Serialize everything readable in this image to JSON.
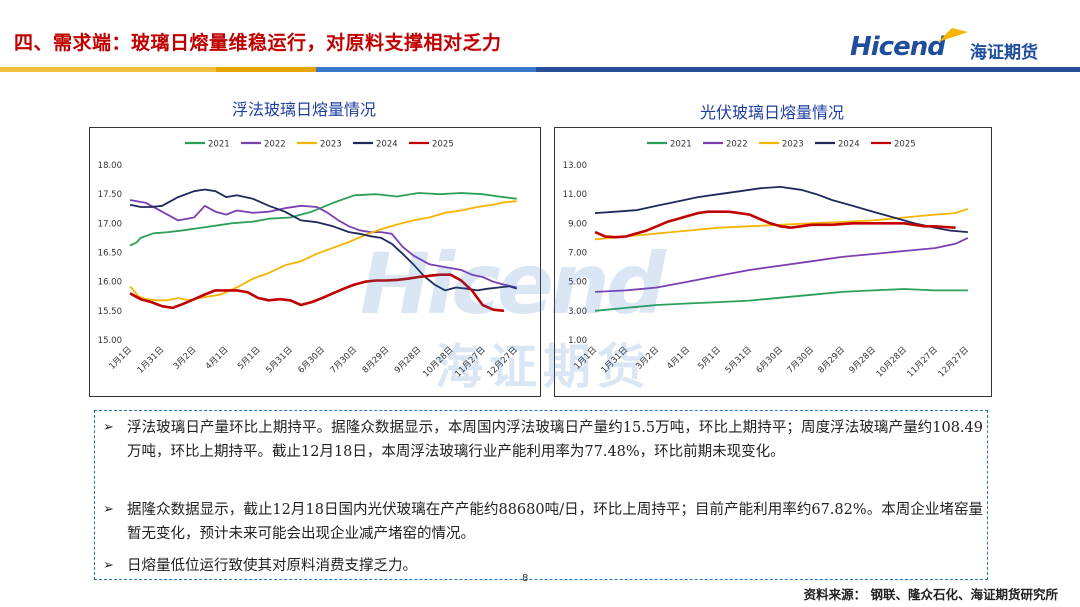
{
  "header": {
    "title": "四、需求端：玻璃日熔量维稳运行，对原料支撑相对乏力",
    "logo_text": "Hicend",
    "logo_cn": "海证期货"
  },
  "watermark": {
    "en": "Hicend",
    "cn": "海证期货"
  },
  "colors": {
    "2021": "#2ca05a",
    "2022": "#7b3fb0",
    "2023": "#f4b400",
    "2024": "#1f2a5a",
    "2025": "#c00000"
  },
  "chart_data": [
    {
      "type": "line",
      "title": "浮法玻璃日熔量情况",
      "x_ticks": [
        "1月1日",
        "1月31日",
        "3月2日",
        "4月1日",
        "5月1日",
        "5月31日",
        "6月30日",
        "7月30日",
        "8月29日",
        "9月28日",
        "10月28日",
        "11月27日",
        "12月27日"
      ],
      "ylim": [
        15.0,
        18.0
      ],
      "y_ticks": [
        "15.00",
        "15.50",
        "16.00",
        "16.50",
        "17.00",
        "17.50",
        "18.00"
      ],
      "legend": [
        "2021",
        "2022",
        "2023",
        "2024",
        "2025"
      ],
      "legend_position": "top",
      "series": [
        {
          "name": "2021",
          "x": [
            0,
            6,
            10,
            22,
            36,
            50,
            65,
            80,
            95,
            115,
            130,
            150,
            170,
            190,
            210,
            230,
            250,
            270,
            290,
            310,
            330,
            345,
            362
          ],
          "y": [
            16.62,
            16.67,
            16.75,
            16.83,
            16.85,
            16.88,
            16.92,
            16.96,
            17.0,
            17.03,
            17.08,
            17.1,
            17.2,
            17.35,
            17.48,
            17.5,
            17.46,
            17.52,
            17.5,
            17.52,
            17.5,
            17.46,
            17.42
          ]
        },
        {
          "name": "2022",
          "x": [
            0,
            15,
            30,
            45,
            60,
            70,
            80,
            90,
            100,
            115,
            130,
            145,
            160,
            175,
            185,
            195,
            205,
            215,
            225,
            235,
            245,
            255,
            265,
            280,
            295,
            310,
            320,
            330,
            340,
            350,
            362
          ],
          "y": [
            17.4,
            17.35,
            17.2,
            17.05,
            17.1,
            17.3,
            17.2,
            17.15,
            17.22,
            17.18,
            17.2,
            17.26,
            17.3,
            17.28,
            17.18,
            17.05,
            16.95,
            16.88,
            16.85,
            16.85,
            16.82,
            16.6,
            16.45,
            16.3,
            16.25,
            16.2,
            16.12,
            16.08,
            16.0,
            15.95,
            15.9
          ]
        },
        {
          "name": "2023",
          "x": [
            0,
            8,
            15,
            25,
            35,
            45,
            55,
            65,
            75,
            85,
            100,
            115,
            130,
            145,
            160,
            175,
            190,
            205,
            220,
            235,
            250,
            265,
            280,
            295,
            310,
            325,
            340,
            350,
            362
          ],
          "y": [
            15.92,
            15.75,
            15.7,
            15.68,
            15.68,
            15.72,
            15.68,
            15.72,
            15.75,
            15.78,
            15.9,
            16.05,
            16.15,
            16.28,
            16.35,
            16.48,
            16.58,
            16.68,
            16.8,
            16.9,
            16.98,
            17.05,
            17.1,
            17.18,
            17.22,
            17.28,
            17.32,
            17.36,
            17.38
          ]
        },
        {
          "name": "2024",
          "x": [
            0,
            10,
            20,
            30,
            45,
            60,
            70,
            80,
            90,
            100,
            115,
            130,
            145,
            160,
            175,
            190,
            205,
            215,
            225,
            235,
            245,
            255,
            265,
            275,
            285,
            295,
            305,
            315,
            325,
            335,
            345,
            355,
            362
          ],
          "y": [
            17.32,
            17.28,
            17.28,
            17.3,
            17.45,
            17.55,
            17.58,
            17.55,
            17.45,
            17.48,
            17.42,
            17.3,
            17.2,
            17.05,
            17.02,
            16.95,
            16.85,
            16.82,
            16.78,
            16.75,
            16.65,
            16.48,
            16.3,
            16.1,
            15.95,
            15.85,
            15.9,
            15.88,
            15.85,
            15.88,
            15.9,
            15.92,
            15.88
          ]
        },
        {
          "name": "2025",
          "x": [
            0,
            10,
            20,
            30,
            40,
            50,
            60,
            70,
            80,
            90,
            100,
            110,
            120,
            130,
            140,
            150,
            160,
            170,
            180,
            190,
            200,
            210,
            220,
            230,
            240,
            250,
            260,
            270,
            280,
            290,
            300,
            310,
            320,
            330,
            340,
            350
          ],
          "y": [
            15.8,
            15.7,
            15.65,
            15.58,
            15.55,
            15.62,
            15.7,
            15.78,
            15.85,
            15.85,
            15.85,
            15.82,
            15.72,
            15.68,
            15.7,
            15.68,
            15.6,
            15.65,
            15.72,
            15.8,
            15.88,
            15.95,
            16.0,
            16.02,
            16.02,
            16.03,
            16.05,
            16.08,
            16.1,
            16.12,
            16.12,
            16.02,
            15.85,
            15.6,
            15.52,
            15.5
          ]
        }
      ]
    },
    {
      "type": "line",
      "title": "光伏玻璃日熔量情况",
      "x_ticks": [
        "1月1日",
        "1月31日",
        "3月2日",
        "4月1日",
        "5月1日",
        "5月31日",
        "6月30日",
        "7月30日",
        "8月29日",
        "9月28日",
        "10月28日",
        "11月27日",
        "12月27日"
      ],
      "ylim": [
        1.0,
        13.0
      ],
      "y_ticks": [
        "1.00",
        "3.00",
        "5.00",
        "7.00",
        "9.00",
        "11.00",
        "13.00"
      ],
      "legend": [
        "2021",
        "2022",
        "2023",
        "2024",
        "2025"
      ],
      "legend_position": "top",
      "series": [
        {
          "name": "2021",
          "x": [
            0,
            30,
            60,
            90,
            120,
            150,
            180,
            210,
            240,
            270,
            300,
            330,
            362
          ],
          "y": [
            3.0,
            3.2,
            3.4,
            3.5,
            3.6,
            3.7,
            3.9,
            4.1,
            4.3,
            4.4,
            4.5,
            4.4,
            4.4
          ]
        },
        {
          "name": "2022",
          "x": [
            0,
            30,
            60,
            90,
            120,
            150,
            180,
            210,
            240,
            270,
            300,
            330,
            350,
            362
          ],
          "y": [
            4.3,
            4.4,
            4.6,
            5.0,
            5.4,
            5.8,
            6.1,
            6.4,
            6.7,
            6.9,
            7.1,
            7.3,
            7.6,
            8.0
          ]
        },
        {
          "name": "2023",
          "x": [
            0,
            30,
            60,
            90,
            120,
            150,
            180,
            210,
            240,
            270,
            300,
            330,
            350,
            362
          ],
          "y": [
            7.9,
            8.1,
            8.3,
            8.5,
            8.7,
            8.8,
            8.9,
            9.0,
            9.1,
            9.2,
            9.4,
            9.6,
            9.7,
            10.0
          ]
        },
        {
          "name": "2024",
          "x": [
            0,
            20,
            40,
            60,
            80,
            100,
            120,
            140,
            160,
            180,
            200,
            215,
            230,
            250,
            270,
            290,
            310,
            330,
            345,
            362
          ],
          "y": [
            9.7,
            9.8,
            9.9,
            10.2,
            10.5,
            10.8,
            11.0,
            11.2,
            11.4,
            11.5,
            11.3,
            11.0,
            10.6,
            10.2,
            9.8,
            9.4,
            9.0,
            8.7,
            8.5,
            8.4
          ]
        },
        {
          "name": "2025",
          "x": [
            0,
            10,
            20,
            30,
            40,
            50,
            60,
            70,
            80,
            90,
            100,
            110,
            120,
            130,
            140,
            150,
            160,
            170,
            180,
            190,
            200,
            210,
            220,
            230,
            240,
            250,
            260,
            270,
            280,
            290,
            300,
            310,
            320,
            330,
            340,
            350
          ],
          "y": [
            8.4,
            8.1,
            8.05,
            8.1,
            8.3,
            8.5,
            8.8,
            9.1,
            9.3,
            9.5,
            9.7,
            9.8,
            9.8,
            9.8,
            9.7,
            9.6,
            9.3,
            9.0,
            8.8,
            8.7,
            8.8,
            8.9,
            8.9,
            8.9,
            8.95,
            9.0,
            9.0,
            9.0,
            9.0,
            9.0,
            9.0,
            8.9,
            8.8,
            8.8,
            8.75,
            8.7
          ]
        }
      ]
    }
  ],
  "notes": {
    "bullets": [
      {
        "mark": "➢",
        "text": "浮法玻璃日产量环比上期持平。据隆众数据显示，本周国内浮法玻璃日产量约15.5万吨，环比上期持平；周度浮法玻璃产量约108.49万吨，环比上期持平。截止12月18日，本周浮法玻璃行业产能利用率为77.48%，环比前期未现变化。"
      },
      {
        "mark": "➢",
        "text": "据隆众数据显示，截止12月18日国内光伏玻璃在产产能约88680吨/日，环比上周持平；目前产能利用率约67.82%。本周企业堵窑量暂无变化，预计未来可能会出现企业减产堵窑的情况。"
      },
      {
        "mark": "➢",
        "text": "日熔量低位运行致使其对原料消费支撑乏力。"
      }
    ]
  },
  "footer": {
    "page": "8",
    "source": "资料来源： 钢联、隆众石化、海证期货研究所"
  }
}
